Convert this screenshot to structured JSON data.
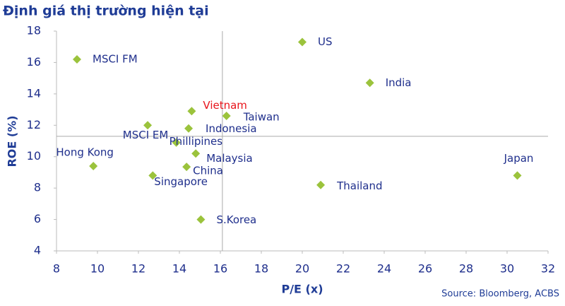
{
  "chart_data": {
    "type": "scatter",
    "title": "Định giá thị trường hiện tại",
    "x_label": "P/E (x)",
    "y_label": "ROE (%)",
    "source": "Source: Bloomberg, ACBS",
    "point_labels": [
      "MSCI FM",
      "US",
      "India",
      "Vietnam",
      "Taiwan",
      "MSCI EM",
      "Indonesia",
      "Phillipines",
      "Malaysia",
      "Hong Kong",
      "China",
      "Singapore",
      "Japan",
      "Thailand",
      "S.Korea"
    ],
    "x": [
      9.0,
      20.0,
      23.3,
      14.6,
      16.3,
      12.45,
      14.45,
      13.85,
      14.8,
      9.8,
      14.35,
      12.7,
      30.5,
      20.9,
      15.05
    ],
    "values": [
      16.2,
      17.3,
      14.7,
      12.9,
      12.6,
      12.0,
      11.8,
      10.9,
      10.2,
      9.4,
      9.35,
      8.8,
      8.8,
      8.2,
      6.0
    ],
    "color": "#9bc33c",
    "label_color": "#1f2f8c",
    "highlight_index": 3,
    "highlight_color": "#e8141b",
    "ref_x": 16.1,
    "ref_y": 11.3,
    "xlim": [
      8,
      32
    ],
    "xticks": [
      8,
      10,
      12,
      14,
      16,
      18,
      20,
      22,
      24,
      26,
      28,
      30,
      32
    ],
    "ylim": [
      4,
      18
    ],
    "yticks": [
      4,
      6,
      8,
      10,
      12,
      14,
      16,
      18
    ]
  }
}
